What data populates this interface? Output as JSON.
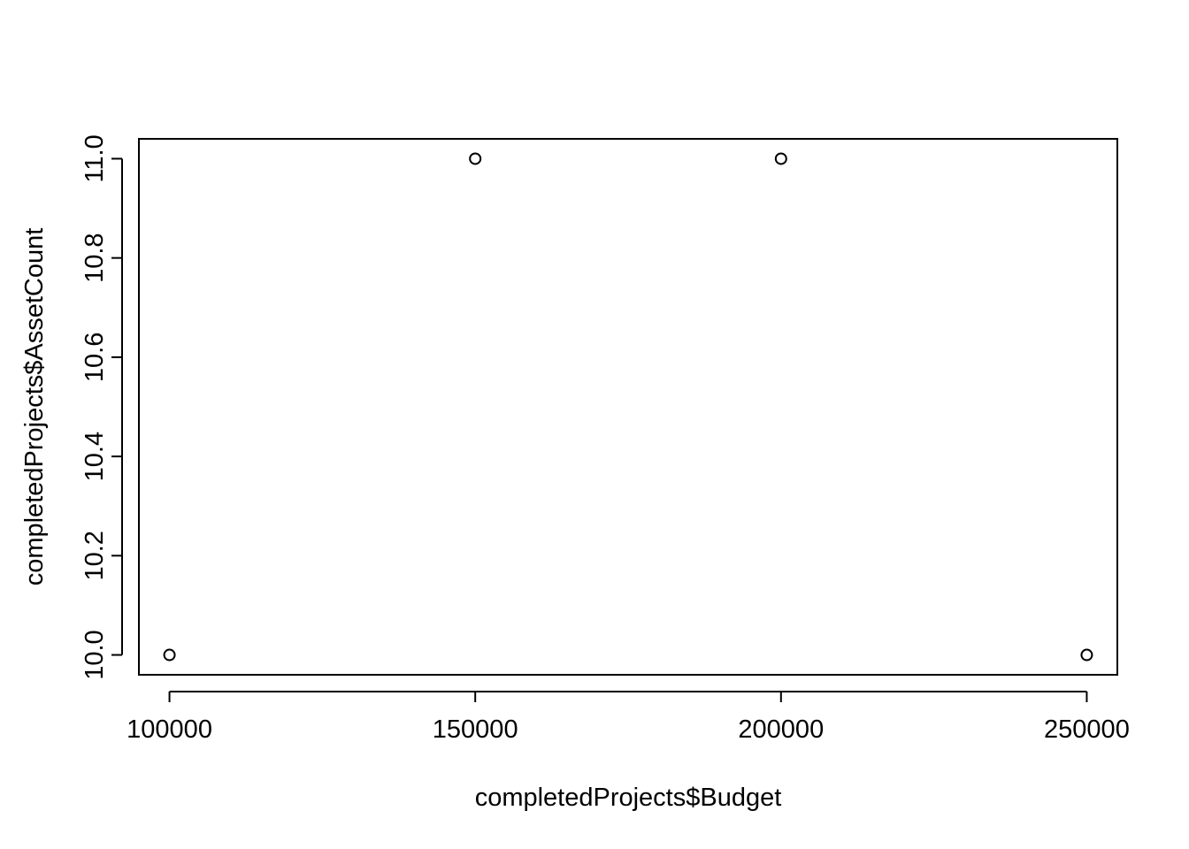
{
  "chart_data": {
    "type": "scatter",
    "title": "",
    "xlabel": "completedProjects$Budget",
    "ylabel": "completedProjects$AssetCount",
    "xlim": [
      95000,
      255000
    ],
    "ylim": [
      9.96,
      11.04
    ],
    "x_ticks": [
      100000,
      150000,
      200000,
      250000
    ],
    "x_tick_labels": [
      "100000",
      "150000",
      "200000",
      "250000"
    ],
    "y_ticks": [
      10.0,
      10.2,
      10.4,
      10.6,
      10.8,
      11.0
    ],
    "y_tick_labels": [
      "10.0",
      "10.2",
      "10.4",
      "10.6",
      "10.8",
      "11.0"
    ],
    "grid": false,
    "marker": "open-circle",
    "series": [
      {
        "x": [
          100000,
          150000,
          200000,
          250000
        ],
        "y": [
          10,
          11,
          11,
          10
        ]
      }
    ],
    "colors": {
      "points": "#000000",
      "axes": "#000000",
      "background": "#ffffff"
    }
  }
}
